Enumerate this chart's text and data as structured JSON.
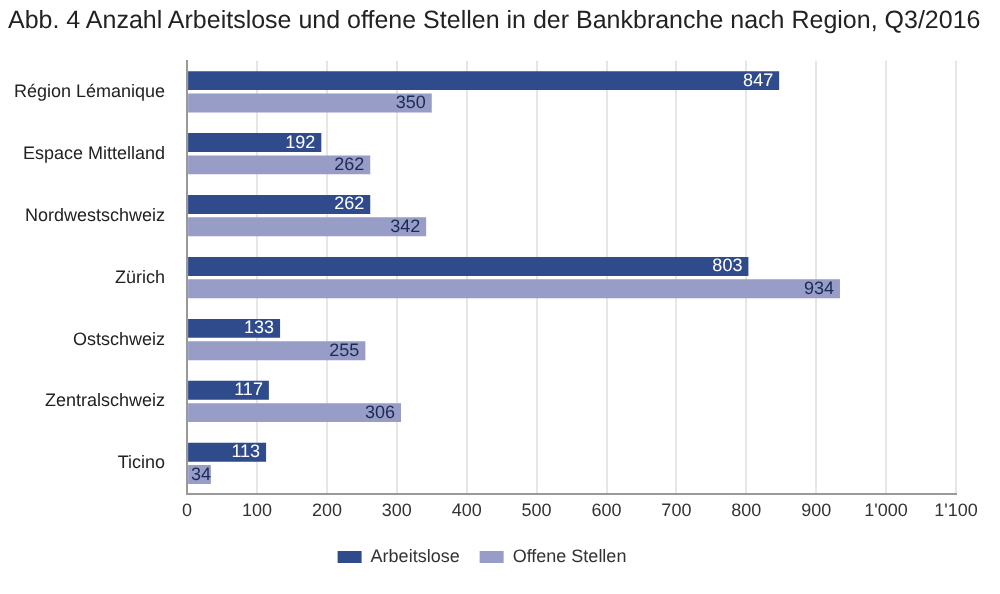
{
  "chart_data": {
    "type": "bar",
    "orientation": "horizontal",
    "title": "Abb. 4  Anzahl Arbeitslose und offene Stellen in der Bankbranche nach Region, Q3/2016",
    "categories": [
      "Région Lémanique",
      "Espace Mittelland",
      "Nordwestschweiz",
      "Zürich",
      "Ostschweiz",
      "Zentralschweiz",
      "Ticino"
    ],
    "series": [
      {
        "name": "Arbeitslose",
        "color": "#2f4b8c",
        "values": [
          847,
          192,
          262,
          803,
          133,
          117,
          113
        ]
      },
      {
        "name": "Offene Stellen",
        "color": "#979dc7",
        "values": [
          350,
          262,
          342,
          934,
          255,
          306,
          34
        ]
      }
    ],
    "xlim": [
      0,
      1100
    ],
    "xticks": [
      0,
      100,
      200,
      300,
      400,
      500,
      600,
      700,
      800,
      900,
      {
        "value": 1000,
        "label": "1'000"
      },
      {
        "value": 1100,
        "label": "1'100"
      }
    ],
    "grid": "x",
    "legend": "bottom",
    "data_labels": true
  }
}
